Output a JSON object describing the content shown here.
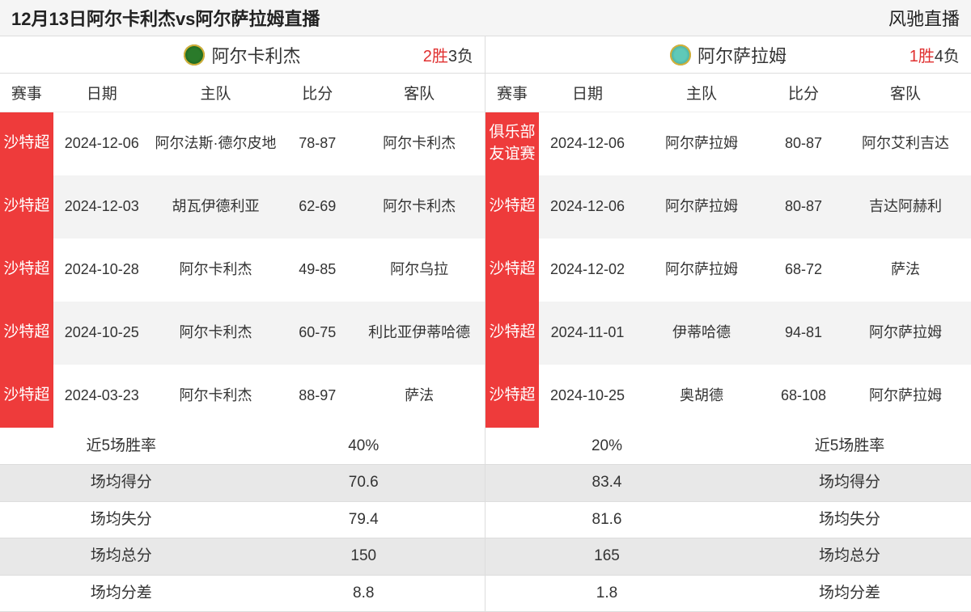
{
  "header": {
    "title": "12月13日阿尔卡利杰vs阿尔萨拉姆直播",
    "brand": "风驰直播"
  },
  "columns": {
    "league": "赛事",
    "date": "日期",
    "home": "主队",
    "score": "比分",
    "away": "客队"
  },
  "left": {
    "team": "阿尔卡利杰",
    "record_win": "2胜",
    "record_loss": "3负",
    "logo_class": "logo-green",
    "rows": [
      {
        "league": "沙特超",
        "date": "2024-12-06",
        "home": "阿尔法斯·德尔皮地",
        "score": "78-87",
        "away": "阿尔卡利杰"
      },
      {
        "league": "沙特超",
        "date": "2024-12-03",
        "home": "胡瓦伊德利亚",
        "score": "62-69",
        "away": "阿尔卡利杰"
      },
      {
        "league": "沙特超",
        "date": "2024-10-28",
        "home": "阿尔卡利杰",
        "score": "49-85",
        "away": "阿尔乌拉"
      },
      {
        "league": "沙特超",
        "date": "2024-10-25",
        "home": "阿尔卡利杰",
        "score": "60-75",
        "away": "利比亚伊蒂哈德"
      },
      {
        "league": "沙特超",
        "date": "2024-03-23",
        "home": "阿尔卡利杰",
        "score": "88-97",
        "away": "萨法"
      }
    ],
    "stats": [
      {
        "label": "近5场胜率",
        "value": "40%"
      },
      {
        "label": "场均得分",
        "value": "70.6"
      },
      {
        "label": "场均失分",
        "value": "79.4"
      },
      {
        "label": "场均总分",
        "value": "150"
      },
      {
        "label": "场均分差",
        "value": "8.8"
      }
    ]
  },
  "right": {
    "team": "阿尔萨拉姆",
    "record_win": "1胜",
    "record_loss": "4负",
    "logo_class": "logo-teal",
    "rows": [
      {
        "league": "俱乐部友谊赛",
        "date": "2024-12-06",
        "home": "阿尔萨拉姆",
        "score": "80-87",
        "away": "阿尔艾利吉达"
      },
      {
        "league": "沙特超",
        "date": "2024-12-06",
        "home": "阿尔萨拉姆",
        "score": "80-87",
        "away": "吉达阿赫利"
      },
      {
        "league": "沙特超",
        "date": "2024-12-02",
        "home": "阿尔萨拉姆",
        "score": "68-72",
        "away": "萨法"
      },
      {
        "league": "沙特超",
        "date": "2024-11-01",
        "home": "伊蒂哈德",
        "score": "94-81",
        "away": "阿尔萨拉姆"
      },
      {
        "league": "沙特超",
        "date": "2024-10-25",
        "home": "奥胡德",
        "score": "68-108",
        "away": "阿尔萨拉姆"
      }
    ],
    "stats": [
      {
        "value": "20%",
        "label": "近5场胜率"
      },
      {
        "value": "83.4",
        "label": "场均得分"
      },
      {
        "value": "81.6",
        "label": "场均失分"
      },
      {
        "value": "165",
        "label": "场均总分"
      },
      {
        "value": "1.8",
        "label": "场均分差"
      }
    ]
  }
}
